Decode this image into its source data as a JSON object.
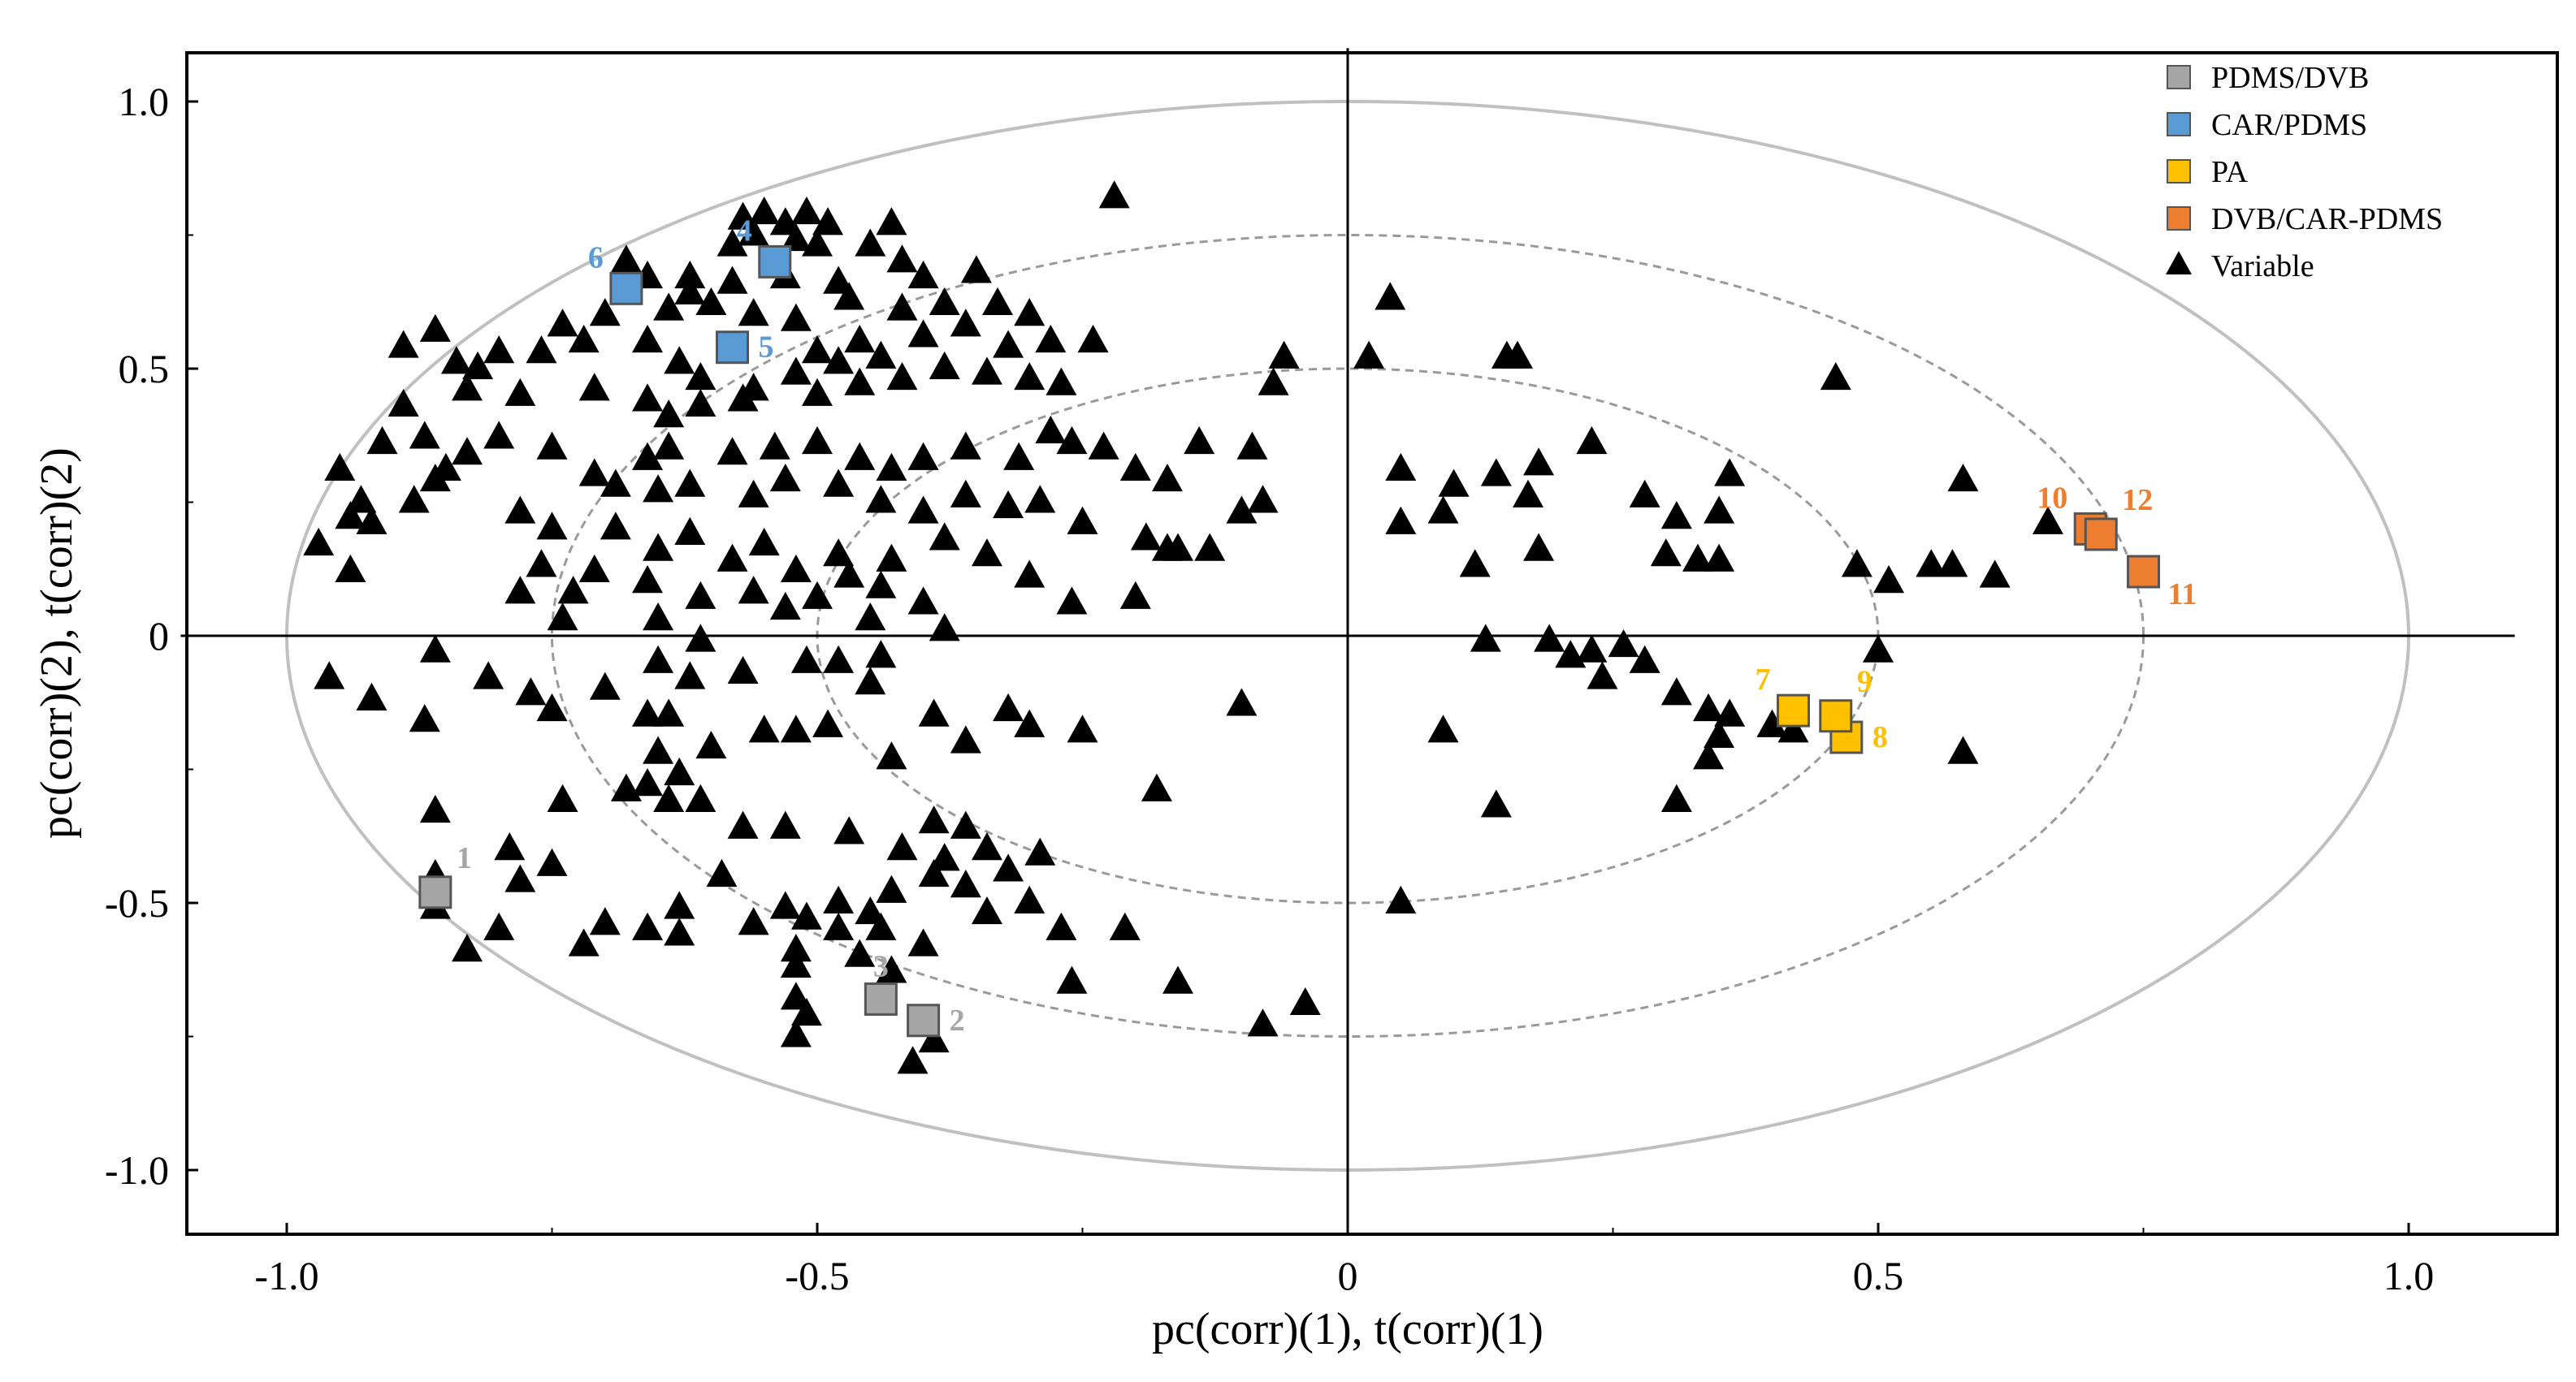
{
  "chart_data": {
    "type": "scatter",
    "title": "",
    "xlabel": "pc(corr)(1), t(corr)(1)",
    "ylabel": "pc(corr)(2), t(corr)(2)",
    "xlim": [
      -1.1,
      1.1
    ],
    "ylim": [
      -1.1,
      1.1
    ],
    "x_ticks": [
      -1.0,
      -0.5,
      0,
      0.5,
      1.0
    ],
    "x_tick_labels": [
      "-1.0",
      "-0.5",
      "0",
      "0.5",
      "1.0"
    ],
    "y_ticks": [
      -1.0,
      -0.5,
      0,
      0.5,
      1.0
    ],
    "y_tick_labels": [
      "-1.0",
      "-0.5",
      "0",
      "0.5",
      "1.0"
    ],
    "ellipses": [
      {
        "r": 1.0,
        "style": "solid"
      },
      {
        "r": 0.75,
        "style": "dashed"
      },
      {
        "r": 0.5,
        "style": "dashed"
      }
    ],
    "legend": {
      "position": "top-right",
      "entries": [
        {
          "name": "PDMS/DVB",
          "marker": "square",
          "color": "#a6a6a6"
        },
        {
          "name": "CAR/PDMS",
          "marker": "square",
          "color": "#5b9bd5"
        },
        {
          "name": "PA",
          "marker": "square",
          "color": "#ffc000"
        },
        {
          "name": "DVB/CAR-PDMS",
          "marker": "square",
          "color": "#ed7d31"
        },
        {
          "name": "Variable",
          "marker": "triangle",
          "color": "#000000"
        }
      ]
    },
    "series": [
      {
        "name": "PDMS/DVB",
        "color": "#a6a6a6",
        "label_color": "#a6a6a6",
        "points": [
          {
            "x": -0.86,
            "y": -0.48,
            "label": "1",
            "label_pos": "ur"
          },
          {
            "x": -0.4,
            "y": -0.72,
            "label": "2",
            "label_pos": "r"
          },
          {
            "x": -0.44,
            "y": -0.68,
            "label": "3",
            "label_pos": "u"
          }
        ]
      },
      {
        "name": "CAR/PDMS",
        "color": "#5b9bd5",
        "label_color": "#5b9bd5",
        "points": [
          {
            "x": -0.54,
            "y": 0.7,
            "label": "4",
            "label_pos": "ul"
          },
          {
            "x": -0.58,
            "y": 0.54,
            "label": "5",
            "label_pos": "r"
          },
          {
            "x": -0.68,
            "y": 0.65,
            "label": "6",
            "label_pos": "ul"
          }
        ]
      },
      {
        "name": "PA",
        "color": "#ffc000",
        "label_color": "#ffc000",
        "points": [
          {
            "x": 0.42,
            "y": -0.14,
            "label": "7",
            "label_pos": "ul"
          },
          {
            "x": 0.47,
            "y": -0.19,
            "label": "8",
            "label_pos": "r"
          },
          {
            "x": 0.46,
            "y": -0.15,
            "label": "9",
            "label_pos": "ur"
          }
        ]
      },
      {
        "name": "DVB/CAR-PDMS",
        "color": "#ed7d31",
        "label_color": "#ed7d31",
        "points": [
          {
            "x": 0.7,
            "y": 0.2,
            "label": "10",
            "label_pos": "ul"
          },
          {
            "x": 0.75,
            "y": 0.12,
            "label": "11",
            "label_pos": "dr"
          },
          {
            "x": 0.71,
            "y": 0.19,
            "label": "12",
            "label_pos": "ur"
          }
        ]
      }
    ],
    "variables": [
      [
        -0.51,
        0.79
      ],
      [
        -0.55,
        0.79
      ],
      [
        -0.57,
        0.78
      ],
      [
        -0.53,
        0.77
      ],
      [
        -0.49,
        0.77
      ],
      [
        -0.56,
        0.75
      ],
      [
        -0.52,
        0.74
      ],
      [
        -0.43,
        0.77
      ],
      [
        -0.22,
        0.82
      ],
      [
        -0.5,
        0.73
      ],
      [
        -0.58,
        0.73
      ],
      [
        -0.45,
        0.73
      ],
      [
        -0.42,
        0.7
      ],
      [
        -0.53,
        0.67
      ],
      [
        -0.48,
        0.66
      ],
      [
        -0.4,
        0.67
      ],
      [
        -0.35,
        0.68
      ],
      [
        -0.47,
        0.63
      ],
      [
        -0.58,
        0.66
      ],
      [
        -0.62,
        0.67
      ],
      [
        -0.68,
        0.7
      ],
      [
        -0.66,
        0.67
      ],
      [
        -0.62,
        0.64
      ],
      [
        -0.6,
        0.62
      ],
      [
        -0.64,
        0.61
      ],
      [
        -0.56,
        0.6
      ],
      [
        -0.52,
        0.59
      ],
      [
        -0.42,
        0.61
      ],
      [
        -0.38,
        0.62
      ],
      [
        -0.33,
        0.62
      ],
      [
        -0.3,
        0.6
      ],
      [
        -0.46,
        0.55
      ],
      [
        -0.5,
        0.53
      ],
      [
        -0.48,
        0.51
      ],
      [
        -0.52,
        0.49
      ],
      [
        -0.44,
        0.52
      ],
      [
        -0.4,
        0.56
      ],
      [
        -0.36,
        0.58
      ],
      [
        -0.32,
        0.54
      ],
      [
        -0.28,
        0.55
      ],
      [
        -0.24,
        0.55
      ],
      [
        -0.34,
        0.49
      ],
      [
        -0.3,
        0.48
      ],
      [
        -0.27,
        0.47
      ],
      [
        -0.38,
        0.5
      ],
      [
        -0.42,
        0.48
      ],
      [
        -0.46,
        0.47
      ],
      [
        -0.5,
        0.45
      ],
      [
        -0.56,
        0.46
      ],
      [
        -0.61,
        0.48
      ],
      [
        -0.63,
        0.51
      ],
      [
        -0.66,
        0.55
      ],
      [
        -0.7,
        0.6
      ],
      [
        -0.72,
        0.55
      ],
      [
        -0.74,
        0.58
      ],
      [
        -0.76,
        0.53
      ],
      [
        -0.8,
        0.53
      ],
      [
        -0.82,
        0.5
      ],
      [
        -0.84,
        0.51
      ],
      [
        -0.86,
        0.57
      ],
      [
        -0.89,
        0.54
      ],
      [
        -0.83,
        0.46
      ],
      [
        -0.78,
        0.45
      ],
      [
        -0.71,
        0.46
      ],
      [
        -0.66,
        0.44
      ],
      [
        -0.64,
        0.41
      ],
      [
        -0.61,
        0.43
      ],
      [
        -0.57,
        0.44
      ],
      [
        -0.64,
        0.35
      ],
      [
        -0.66,
        0.33
      ],
      [
        -0.58,
        0.34
      ],
      [
        -0.54,
        0.35
      ],
      [
        -0.5,
        0.36
      ],
      [
        -0.46,
        0.33
      ],
      [
        -0.43,
        0.31
      ],
      [
        -0.4,
        0.33
      ],
      [
        -0.36,
        0.35
      ],
      [
        -0.31,
        0.33
      ],
      [
        -0.28,
        0.38
      ],
      [
        -0.26,
        0.36
      ],
      [
        -0.23,
        0.35
      ],
      [
        -0.2,
        0.31
      ],
      [
        -0.17,
        0.29
      ],
      [
        -0.14,
        0.36
      ],
      [
        -0.09,
        0.35
      ],
      [
        -0.07,
        0.47
      ],
      [
        -0.06,
        0.52
      ],
      [
        0.02,
        0.52
      ],
      [
        0.04,
        0.63
      ],
      [
        0.15,
        0.52
      ],
      [
        0.16,
        0.52
      ],
      [
        0.46,
        0.48
      ],
      [
        -0.89,
        0.43
      ],
      [
        -0.91,
        0.36
      ],
      [
        -0.87,
        0.37
      ],
      [
        -0.85,
        0.31
      ],
      [
        -0.83,
        0.34
      ],
      [
        -0.8,
        0.37
      ],
      [
        -0.75,
        0.35
      ],
      [
        -0.71,
        0.3
      ],
      [
        -0.69,
        0.28
      ],
      [
        -0.65,
        0.27
      ],
      [
        -0.62,
        0.28
      ],
      [
        -0.56,
        0.26
      ],
      [
        -0.53,
        0.29
      ],
      [
        -0.48,
        0.28
      ],
      [
        -0.44,
        0.25
      ],
      [
        -0.4,
        0.23
      ],
      [
        -0.36,
        0.26
      ],
      [
        -0.32,
        0.24
      ],
      [
        -0.29,
        0.25
      ],
      [
        -0.25,
        0.21
      ],
      [
        -0.19,
        0.18
      ],
      [
        -0.17,
        0.16
      ],
      [
        -0.13,
        0.16
      ],
      [
        -0.1,
        0.23
      ],
      [
        -0.08,
        0.25
      ],
      [
        0.05,
        0.31
      ],
      [
        0.1,
        0.28
      ],
      [
        0.14,
        0.3
      ],
      [
        0.17,
        0.26
      ],
      [
        0.18,
        0.32
      ],
      [
        0.23,
        0.36
      ],
      [
        0.28,
        0.26
      ],
      [
        0.31,
        0.22
      ],
      [
        0.35,
        0.23
      ],
      [
        0.36,
        0.3
      ],
      [
        0.58,
        0.29
      ],
      [
        0.66,
        0.21
      ],
      [
        0.55,
        0.13
      ],
      [
        0.57,
        0.13
      ],
      [
        0.61,
        0.11
      ],
      [
        0.51,
        0.1
      ],
      [
        0.48,
        0.13
      ],
      [
        0.3,
        0.15
      ],
      [
        0.33,
        0.14
      ],
      [
        0.35,
        0.14
      ],
      [
        0.18,
        0.16
      ],
      [
        0.12,
        0.13
      ],
      [
        0.09,
        0.23
      ],
      [
        0.05,
        0.21
      ],
      [
        -0.93,
        0.25
      ],
      [
        -0.94,
        0.22
      ],
      [
        -0.92,
        0.21
      ],
      [
        -0.88,
        0.25
      ],
      [
        -0.86,
        0.29
      ],
      [
        -0.95,
        0.31
      ],
      [
        -0.97,
        0.17
      ],
      [
        -0.94,
        0.12
      ],
      [
        -0.78,
        0.23
      ],
      [
        -0.75,
        0.2
      ],
      [
        -0.69,
        0.2
      ],
      [
        -0.65,
        0.16
      ],
      [
        -0.62,
        0.19
      ],
      [
        -0.58,
        0.14
      ],
      [
        -0.55,
        0.17
      ],
      [
        -0.52,
        0.12
      ],
      [
        -0.48,
        0.15
      ],
      [
        -0.43,
        0.14
      ],
      [
        -0.38,
        0.18
      ],
      [
        -0.34,
        0.15
      ],
      [
        -0.3,
        0.11
      ],
      [
        -0.26,
        0.06
      ],
      [
        -0.2,
        0.07
      ],
      [
        -0.16,
        0.16
      ],
      [
        -0.44,
        0.09
      ],
      [
        -0.47,
        0.11
      ],
      [
        -0.56,
        0.08
      ],
      [
        -0.61,
        0.07
      ],
      [
        -0.66,
        0.1
      ],
      [
        -0.71,
        0.12
      ],
      [
        -0.73,
        0.08
      ],
      [
        -0.76,
        0.13
      ],
      [
        -0.78,
        0.08
      ],
      [
        -0.74,
        0.03
      ],
      [
        -0.65,
        0.03
      ],
      [
        -0.61,
        -0.01
      ],
      [
        -0.53,
        0.05
      ],
      [
        -0.5,
        0.07
      ],
      [
        -0.45,
        0.03
      ],
      [
        -0.4,
        0.06
      ],
      [
        -0.38,
        0.01
      ],
      [
        -0.96,
        -0.08
      ],
      [
        -0.92,
        -0.12
      ],
      [
        -0.86,
        -0.03
      ],
      [
        -0.87,
        -0.16
      ],
      [
        -0.81,
        -0.08
      ],
      [
        -0.77,
        -0.11
      ],
      [
        -0.75,
        -0.14
      ],
      [
        -0.7,
        -0.1
      ],
      [
        -0.65,
        -0.05
      ],
      [
        -0.62,
        -0.08
      ],
      [
        -0.57,
        -0.07
      ],
      [
        -0.51,
        -0.05
      ],
      [
        -0.48,
        -0.05
      ],
      [
        -0.44,
        -0.04
      ],
      [
        -0.45,
        -0.09
      ],
      [
        -0.64,
        -0.15
      ],
      [
        -0.6,
        -0.21
      ],
      [
        -0.55,
        -0.18
      ],
      [
        -0.52,
        -0.18
      ],
      [
        -0.49,
        -0.17
      ],
      [
        -0.43,
        -0.23
      ],
      [
        -0.39,
        -0.15
      ],
      [
        -0.36,
        -0.2
      ],
      [
        -0.32,
        -0.14
      ],
      [
        -0.3,
        -0.17
      ],
      [
        -0.25,
        -0.18
      ],
      [
        -0.18,
        -0.29
      ],
      [
        -0.1,
        -0.13
      ],
      [
        0.09,
        -0.18
      ],
      [
        0.14,
        -0.32
      ],
      [
        0.13,
        -0.01
      ],
      [
        0.19,
        -0.01
      ],
      [
        0.21,
        -0.04
      ],
      [
        0.23,
        -0.03
      ],
      [
        0.24,
        -0.08
      ],
      [
        0.26,
        -0.02
      ],
      [
        0.28,
        -0.05
      ],
      [
        0.31,
        -0.11
      ],
      [
        0.34,
        -0.14
      ],
      [
        0.36,
        -0.15
      ],
      [
        0.35,
        -0.19
      ],
      [
        0.34,
        -0.23
      ],
      [
        0.31,
        -0.31
      ],
      [
        0.4,
        -0.17
      ],
      [
        0.42,
        -0.18
      ],
      [
        0.5,
        -0.03
      ],
      [
        0.58,
        -0.22
      ],
      [
        -0.66,
        -0.15
      ],
      [
        -0.65,
        -0.22
      ],
      [
        -0.63,
        -0.26
      ],
      [
        -0.61,
        -0.31
      ],
      [
        -0.66,
        -0.28
      ],
      [
        -0.68,
        -0.29
      ],
      [
        -0.64,
        -0.31
      ],
      [
        -0.57,
        -0.36
      ],
      [
        -0.53,
        -0.36
      ],
      [
        -0.47,
        -0.37
      ],
      [
        -0.42,
        -0.4
      ],
      [
        -0.39,
        -0.35
      ],
      [
        -0.36,
        -0.36
      ],
      [
        -0.38,
        -0.42
      ],
      [
        -0.39,
        -0.45
      ],
      [
        -0.34,
        -0.4
      ],
      [
        -0.29,
        -0.41
      ],
      [
        -0.32,
        -0.44
      ],
      [
        -0.36,
        -0.47
      ],
      [
        -0.43,
        -0.48
      ],
      [
        -0.45,
        -0.52
      ],
      [
        -0.48,
        -0.5
      ],
      [
        -0.51,
        -0.53
      ],
      [
        -0.53,
        -0.51
      ],
      [
        -0.44,
        -0.55
      ],
      [
        -0.4,
        -0.58
      ],
      [
        -0.34,
        -0.52
      ],
      [
        -0.3,
        -0.5
      ],
      [
        -0.27,
        -0.55
      ],
      [
        -0.21,
        -0.55
      ],
      [
        -0.59,
        -0.45
      ],
      [
        -0.63,
        -0.51
      ],
      [
        -0.66,
        -0.55
      ],
      [
        -0.7,
        -0.54
      ],
      [
        -0.72,
        -0.58
      ],
      [
        -0.75,
        -0.43
      ],
      [
        -0.78,
        -0.46
      ],
      [
        -0.8,
        -0.55
      ],
      [
        -0.83,
        -0.59
      ],
      [
        -0.86,
        -0.51
      ],
      [
        -0.86,
        -0.33
      ],
      [
        -0.74,
        -0.31
      ],
      [
        -0.79,
        -0.4
      ],
      [
        -0.86,
        -0.45
      ],
      [
        -0.63,
        -0.56
      ],
      [
        -0.56,
        -0.54
      ],
      [
        -0.52,
        -0.59
      ],
      [
        -0.48,
        -0.55
      ],
      [
        -0.46,
        -0.6
      ],
      [
        -0.43,
        -0.63
      ],
      [
        -0.39,
        -0.76
      ],
      [
        -0.41,
        -0.8
      ],
      [
        -0.52,
        -0.62
      ],
      [
        -0.52,
        -0.68
      ],
      [
        -0.51,
        -0.71
      ],
      [
        -0.52,
        -0.75
      ],
      [
        -0.26,
        -0.65
      ],
      [
        -0.16,
        -0.65
      ],
      [
        -0.04,
        -0.69
      ],
      [
        -0.08,
        -0.73
      ],
      [
        0.05,
        -0.5
      ]
    ]
  }
}
